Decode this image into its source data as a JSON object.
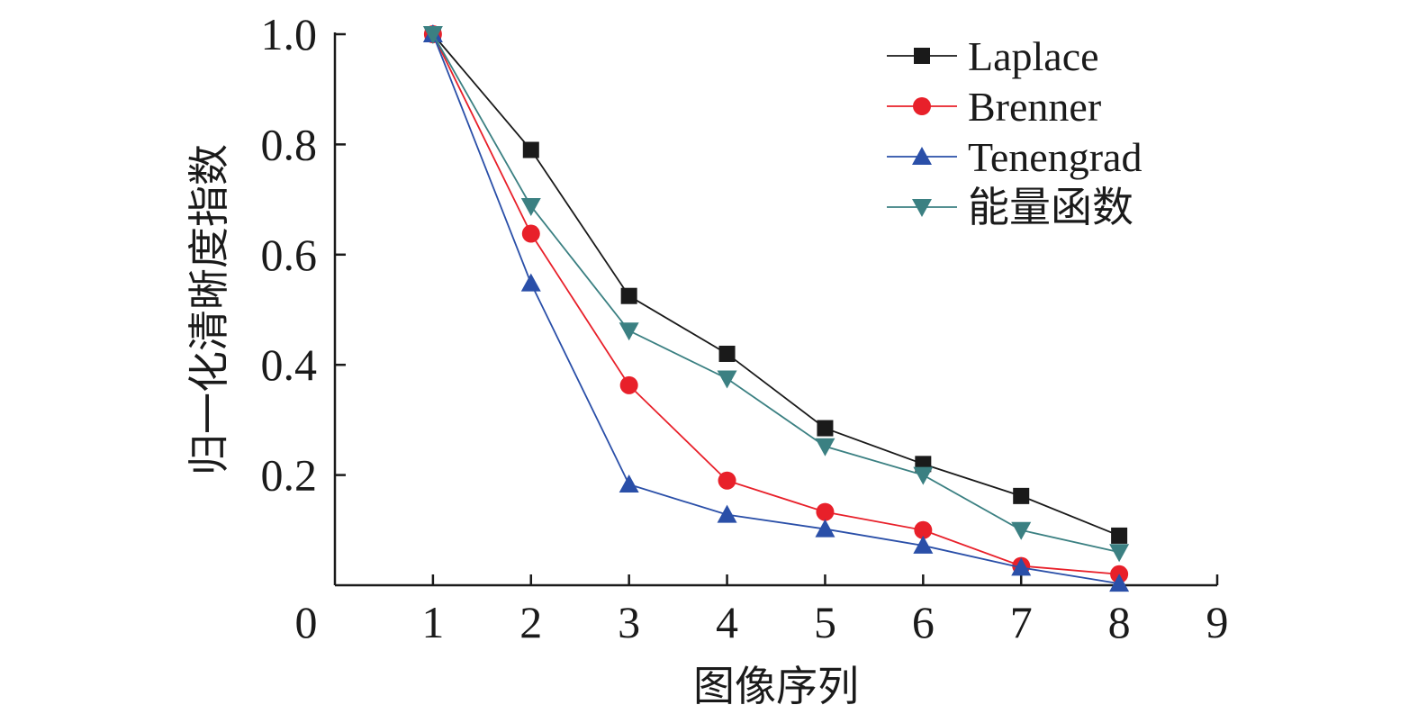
{
  "chart_data": {
    "type": "line",
    "title": "",
    "xlabel": "图像序列",
    "ylabel": "归一化清晰度指数",
    "xlim": [
      0,
      9
    ],
    "ylim": [
      0,
      1.0
    ],
    "x_ticks": [
      0,
      1,
      2,
      3,
      4,
      5,
      6,
      7,
      8,
      9
    ],
    "x_tick_labels": [
      "0",
      "1",
      "2",
      "3",
      "4",
      "5",
      "6",
      "7",
      "8",
      "9"
    ],
    "y_ticks": [
      0.2,
      0.4,
      0.6,
      0.8,
      1.0
    ],
    "y_tick_labels": [
      "0.2",
      "0.4",
      "0.6",
      "0.8",
      "1.0"
    ],
    "x": [
      1,
      2,
      3,
      4,
      5,
      6,
      7,
      8
    ],
    "grid": false,
    "legend_position": "top-right",
    "series": [
      {
        "name": "Laplace",
        "color": "#1a1a1a",
        "marker": "square",
        "values": [
          1.0,
          0.79,
          0.525,
          0.42,
          0.285,
          0.22,
          0.162,
          0.09
        ]
      },
      {
        "name": "Brenner",
        "color": "#e8202a",
        "marker": "circle",
        "values": [
          1.0,
          0.638,
          0.363,
          0.19,
          0.133,
          0.1,
          0.035,
          0.02
        ]
      },
      {
        "name": "Tenengrad",
        "color": "#2a4fa8",
        "marker": "triangle-up",
        "values": [
          1.0,
          0.548,
          0.183,
          0.128,
          0.102,
          0.072,
          0.032,
          0.003
        ]
      },
      {
        "name": "能量函数",
        "color": "#3b8082",
        "marker": "triangle-down",
        "values": [
          1.0,
          0.688,
          0.462,
          0.375,
          0.252,
          0.2,
          0.1,
          0.06
        ]
      }
    ]
  }
}
